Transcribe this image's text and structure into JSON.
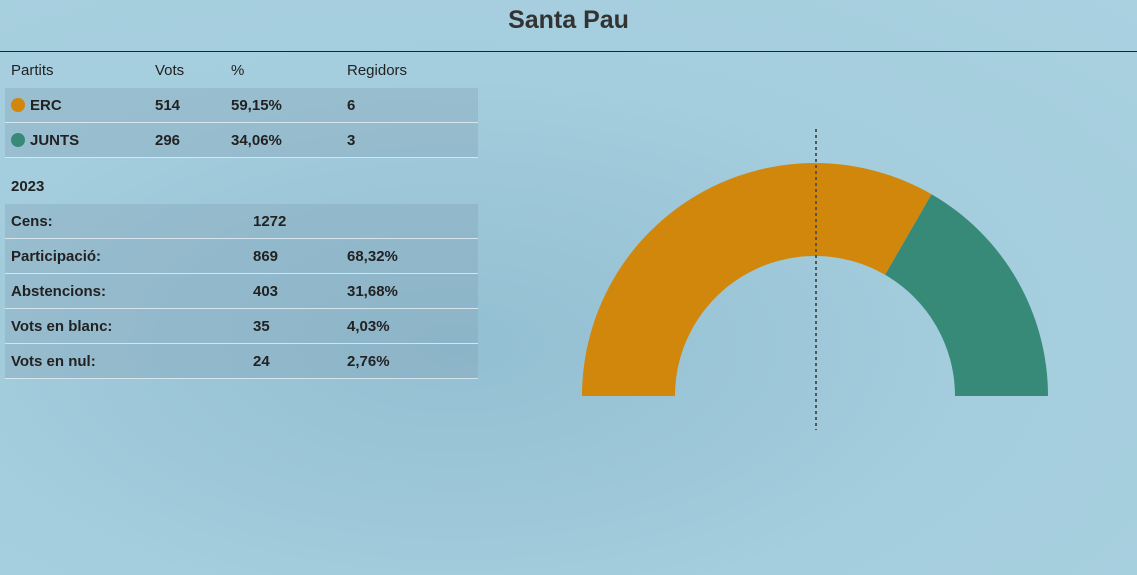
{
  "title": "Santa Pau",
  "parties": {
    "headers": [
      "Partits",
      "Vots",
      "%",
      "Regidors"
    ],
    "rows": [
      {
        "name": "ERC",
        "color": "#d0870c",
        "votes": 514,
        "percent": "59,15%",
        "seats": 6
      },
      {
        "name": "JUNTS",
        "color": "#388a78",
        "votes": 296,
        "percent": "34,06%",
        "seats": 3
      }
    ]
  },
  "summary": {
    "year": "2023",
    "rows": [
      {
        "label": "Cens:",
        "value": 1272
      },
      {
        "label": "Participació:",
        "value": 869,
        "percent": "68,32%"
      },
      {
        "label": "Abstencions:",
        "value": 403,
        "percent": "31,68%"
      },
      {
        "label": "Vots en blanc:",
        "value": 35,
        "percent": "4,03%"
      },
      {
        "label": "Vots en nul:",
        "value": 24,
        "percent": "2,76%"
      }
    ]
  }
}
